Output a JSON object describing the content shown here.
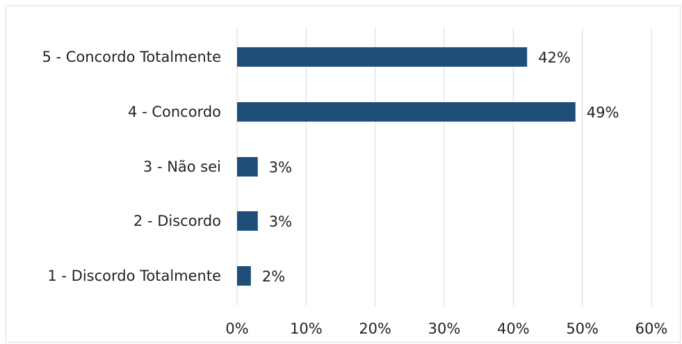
{
  "chart_data": {
    "type": "bar",
    "orientation": "horizontal",
    "categories": [
      "5 - Concordo Totalmente",
      "4 - Concordo",
      "3 - Não sei",
      "2 - Discordo",
      "1 - Discordo Totalmente"
    ],
    "values": [
      42,
      49,
      3,
      3,
      2
    ],
    "value_labels": [
      "42%",
      "49%",
      "3%",
      "3%",
      "2%"
    ],
    "xlim": [
      0,
      60
    ],
    "xticks": [
      0,
      10,
      20,
      30,
      40,
      50,
      60
    ],
    "xtick_labels": [
      "0%",
      "10%",
      "20%",
      "30%",
      "40%",
      "50%",
      "60%"
    ],
    "title": "",
    "xlabel": "",
    "ylabel": "",
    "grid": "vertical",
    "legend": "none",
    "bar_color": "#1f4e79"
  }
}
